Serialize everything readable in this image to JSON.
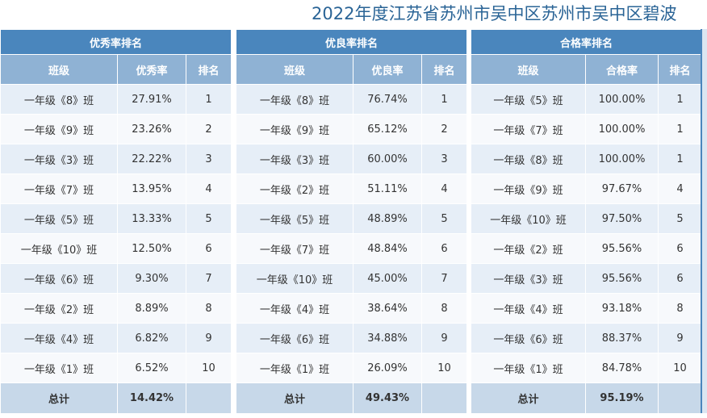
{
  "title": "2022年度江苏省苏州市吴中区苏州市吴中区碧波",
  "panels": [
    {
      "header": "优秀率排名",
      "col_class": "班级",
      "col_rate": "优秀率",
      "col_rank": "排名",
      "rows": [
        {
          "class": "一年级《8》班",
          "rate": "27.91%",
          "rank": "1"
        },
        {
          "class": "一年级《9》班",
          "rate": "23.26%",
          "rank": "2"
        },
        {
          "class": "一年级《3》班",
          "rate": "22.22%",
          "rank": "3"
        },
        {
          "class": "一年级《7》班",
          "rate": "13.95%",
          "rank": "4"
        },
        {
          "class": "一年级《5》班",
          "rate": "13.33%",
          "rank": "5"
        },
        {
          "class": "一年级《10》班",
          "rate": "12.50%",
          "rank": "6"
        },
        {
          "class": "一年级《6》班",
          "rate": "9.30%",
          "rank": "7"
        },
        {
          "class": "一年级《2》班",
          "rate": "8.89%",
          "rank": "8"
        },
        {
          "class": "一年级《4》班",
          "rate": "6.82%",
          "rank": "9"
        },
        {
          "class": "一年级《1》班",
          "rate": "6.52%",
          "rank": "10"
        }
      ],
      "total_label": "总计",
      "total_rate": "14.42%"
    },
    {
      "header": "优良率排名",
      "col_class": "班级",
      "col_rate": "优良率",
      "col_rank": "排名",
      "rows": [
        {
          "class": "一年级《8》班",
          "rate": "76.74%",
          "rank": "1"
        },
        {
          "class": "一年级《9》班",
          "rate": "65.12%",
          "rank": "2"
        },
        {
          "class": "一年级《3》班",
          "rate": "60.00%",
          "rank": "3"
        },
        {
          "class": "一年级《2》班",
          "rate": "51.11%",
          "rank": "4"
        },
        {
          "class": "一年级《5》班",
          "rate": "48.89%",
          "rank": "5"
        },
        {
          "class": "一年级《7》班",
          "rate": "48.84%",
          "rank": "6"
        },
        {
          "class": "一年级《10》班",
          "rate": "45.00%",
          "rank": "7"
        },
        {
          "class": "一年级《4》班",
          "rate": "38.64%",
          "rank": "8"
        },
        {
          "class": "一年级《6》班",
          "rate": "34.88%",
          "rank": "9"
        },
        {
          "class": "一年级《1》班",
          "rate": "26.09%",
          "rank": "10"
        }
      ],
      "total_label": "总计",
      "total_rate": "49.43%"
    },
    {
      "header": "合格率排名",
      "col_class": "班级",
      "col_rate": "合格率",
      "col_rank": "排名",
      "rows": [
        {
          "class": "一年级《5》班",
          "rate": "100.00%",
          "rank": "1"
        },
        {
          "class": "一年级《7》班",
          "rate": "100.00%",
          "rank": "1"
        },
        {
          "class": "一年级《8》班",
          "rate": "100.00%",
          "rank": "1"
        },
        {
          "class": "一年级《9》班",
          "rate": "97.67%",
          "rank": "4"
        },
        {
          "class": "一年级《10》班",
          "rate": "97.50%",
          "rank": "5"
        },
        {
          "class": "一年级《2》班",
          "rate": "95.56%",
          "rank": "6"
        },
        {
          "class": "一年级《3》班",
          "rate": "95.56%",
          "rank": "6"
        },
        {
          "class": "一年级《4》班",
          "rate": "93.18%",
          "rank": "8"
        },
        {
          "class": "一年级《6》班",
          "rate": "88.37%",
          "rank": "9"
        },
        {
          "class": "一年级《1》班",
          "rate": "84.78%",
          "rank": "10"
        }
      ],
      "total_label": "总计",
      "total_rate": "95.19%"
    }
  ]
}
